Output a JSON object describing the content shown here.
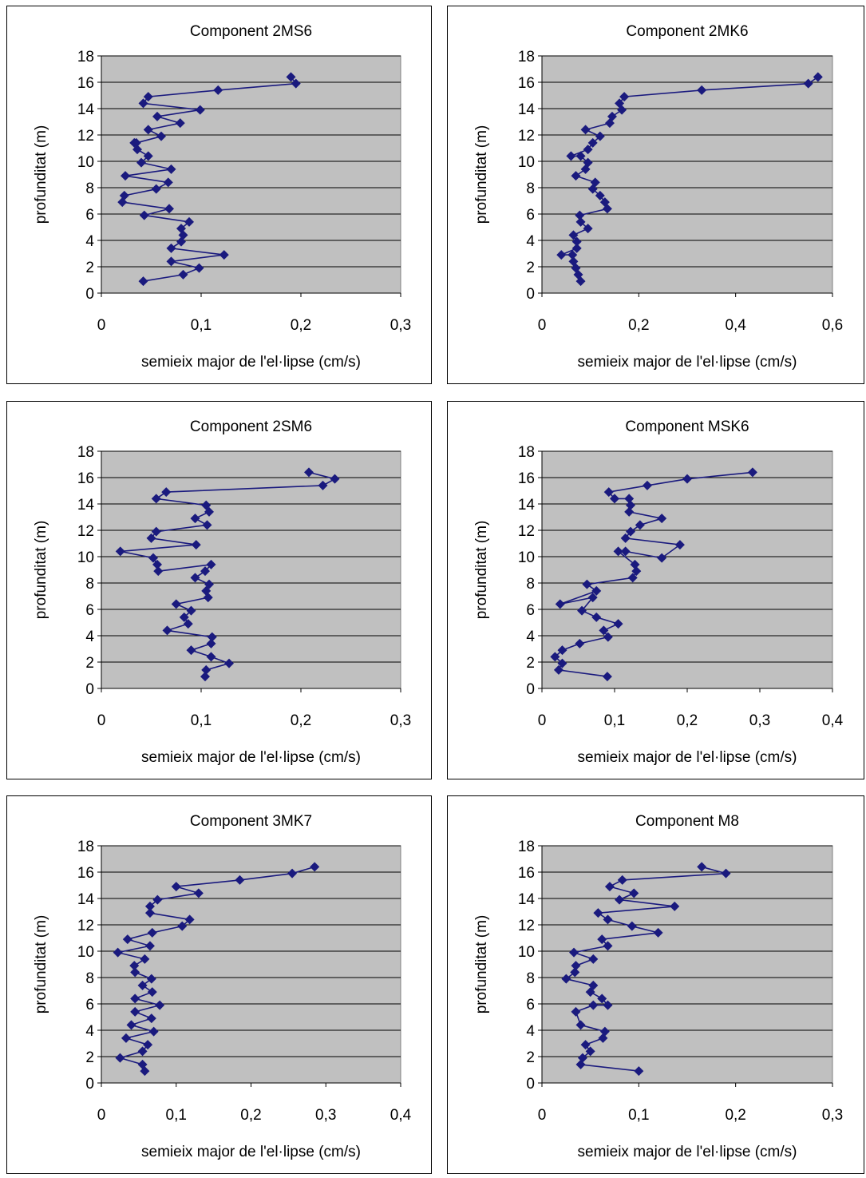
{
  "chart_data": [
    {
      "type": "scatter",
      "title": "Component 2MS6",
      "xlabel": "semieix major de l'el·lipse (cm/s)",
      "ylabel": "profunditat (m)",
      "xlim": [
        0,
        0.3
      ],
      "ylim": [
        0,
        18
      ],
      "xticks": [
        "0",
        "0,1",
        "0,2",
        "0,3"
      ],
      "yticks": [
        "0",
        "2",
        "4",
        "6",
        "8",
        "10",
        "12",
        "14",
        "16",
        "18"
      ],
      "series": [
        {
          "color": "#1a1a7e",
          "x": [
            0.042,
            0.082,
            0.098,
            0.07,
            0.123,
            0.07,
            0.08,
            0.082,
            0.08,
            0.088,
            0.043,
            0.068,
            0.021,
            0.023,
            0.055,
            0.067,
            0.024,
            0.07,
            0.04,
            0.047,
            0.036,
            0.033,
            0.035,
            0.06,
            0.047,
            0.079,
            0.056,
            0.099,
            0.042,
            0.047,
            0.117,
            0.195,
            0.19
          ],
          "y": [
            0.9,
            1.4,
            1.9,
            2.4,
            2.9,
            3.4,
            3.9,
            4.4,
            4.9,
            5.4,
            5.9,
            6.4,
            6.9,
            7.4,
            7.9,
            8.4,
            8.9,
            9.4,
            9.9,
            10.4,
            10.9,
            11.4,
            11.4,
            11.9,
            12.4,
            12.9,
            13.4,
            13.9,
            14.4,
            14.9,
            15.4,
            15.9,
            16.4
          ]
        }
      ]
    },
    {
      "type": "scatter",
      "title": "Component 2MK6",
      "xlabel": "semieix major de l'el·lipse (cm/s)",
      "ylabel": "profunditat (m)",
      "xlim": [
        0,
        0.6
      ],
      "ylim": [
        0,
        18
      ],
      "xticks": [
        "0",
        "0,2",
        "0,4",
        "0,6"
      ],
      "yticks": [
        "0",
        "2",
        "4",
        "6",
        "8",
        "10",
        "12",
        "14",
        "16",
        "18"
      ],
      "series": [
        {
          "color": "#1a1a7e",
          "x": [
            0.08,
            0.075,
            0.07,
            0.065,
            0.063,
            0.04,
            0.072,
            0.072,
            0.065,
            0.095,
            0.08,
            0.078,
            0.135,
            0.13,
            0.12,
            0.105,
            0.11,
            0.07,
            0.09,
            0.095,
            0.08,
            0.06,
            0.095,
            0.105,
            0.12,
            0.09,
            0.14,
            0.145,
            0.165,
            0.16,
            0.17,
            0.33,
            0.55,
            0.57
          ],
          "y": [
            0.9,
            1.4,
            1.9,
            2.4,
            2.9,
            2.9,
            3.4,
            3.9,
            4.4,
            4.9,
            5.4,
            5.9,
            6.4,
            6.9,
            7.4,
            7.9,
            8.4,
            8.9,
            9.4,
            9.9,
            10.4,
            10.4,
            10.9,
            11.4,
            11.9,
            12.4,
            12.9,
            13.4,
            13.9,
            14.4,
            14.9,
            15.4,
            15.9,
            16.4
          ]
        }
      ]
    },
    {
      "type": "scatter",
      "title": "Component 2SM6",
      "xlabel": "semieix major de l'el·lipse (cm/s)",
      "ylabel": "profunditat (m)",
      "xlim": [
        0,
        0.3
      ],
      "ylim": [
        0,
        18
      ],
      "xticks": [
        "0",
        "0,1",
        "0,2",
        "0,3"
      ],
      "yticks": [
        "0",
        "2",
        "4",
        "6",
        "8",
        "10",
        "12",
        "14",
        "16",
        "18"
      ],
      "series": [
        {
          "color": "#1a1a7e",
          "x": [
            0.104,
            0.105,
            0.128,
            0.11,
            0.09,
            0.11,
            0.111,
            0.066,
            0.087,
            0.083,
            0.09,
            0.075,
            0.107,
            0.105,
            0.108,
            0.094,
            0.104,
            0.11,
            0.057,
            0.056,
            0.052,
            0.019,
            0.095,
            0.05,
            0.055,
            0.106,
            0.094,
            0.108,
            0.105,
            0.055,
            0.065,
            0.222,
            0.234,
            0.208
          ],
          "y": [
            0.9,
            1.4,
            1.9,
            2.4,
            2.9,
            3.4,
            3.9,
            4.4,
            4.9,
            5.4,
            5.9,
            6.4,
            6.9,
            7.4,
            7.9,
            8.4,
            8.9,
            9.4,
            8.9,
            9.4,
            9.9,
            10.4,
            10.9,
            11.4,
            11.9,
            12.4,
            12.9,
            13.4,
            13.9,
            14.4,
            14.9,
            15.4,
            15.9,
            16.4
          ]
        }
      ]
    },
    {
      "type": "scatter",
      "title": "Component MSK6",
      "xlabel": "semieix major de l'el·lipse (cm/s)",
      "ylabel": "profunditat (m)",
      "xlim": [
        0,
        0.4
      ],
      "ylim": [
        0,
        18
      ],
      "xticks": [
        "0",
        "0,1",
        "0,2",
        "0,3",
        "0,4"
      ],
      "yticks": [
        "0",
        "2",
        "4",
        "6",
        "8",
        "10",
        "12",
        "14",
        "16",
        "18"
      ],
      "series": [
        {
          "color": "#1a1a7e",
          "x": [
            0.09,
            0.023,
            0.028,
            0.018,
            0.028,
            0.052,
            0.091,
            0.085,
            0.105,
            0.075,
            0.055,
            0.07,
            0.025,
            0.075,
            0.062,
            0.125,
            0.13,
            0.128,
            0.105,
            0.115,
            0.165,
            0.19,
            0.115,
            0.122,
            0.135,
            0.165,
            0.12,
            0.122,
            0.12,
            0.1,
            0.092,
            0.145,
            0.2,
            0.29
          ],
          "y": [
            0.9,
            1.4,
            1.9,
            2.4,
            2.9,
            3.4,
            3.9,
            4.4,
            4.9,
            5.4,
            5.9,
            6.9,
            6.4,
            7.4,
            7.9,
            8.4,
            8.9,
            9.4,
            10.4,
            10.4,
            9.9,
            10.9,
            11.4,
            11.9,
            12.4,
            12.9,
            13.4,
            13.9,
            14.4,
            14.4,
            14.9,
            15.4,
            15.9,
            16.4
          ]
        }
      ]
    },
    {
      "type": "scatter",
      "title": "Component 3MK7",
      "xlabel": "semieix major de l'el·lipse (cm/s)",
      "ylabel": "profunditat (m)",
      "xlim": [
        0,
        0.4
      ],
      "ylim": [
        0,
        18
      ],
      "xticks": [
        "0",
        "0,1",
        "0,2",
        "0,3",
        "0,4"
      ],
      "yticks": [
        "0",
        "2",
        "4",
        "6",
        "8",
        "10",
        "12",
        "14",
        "16",
        "18"
      ],
      "series": [
        {
          "color": "#1a1a7e",
          "x": [
            0.058,
            0.055,
            0.025,
            0.055,
            0.062,
            0.033,
            0.07,
            0.04,
            0.067,
            0.045,
            0.078,
            0.045,
            0.068,
            0.055,
            0.067,
            0.045,
            0.044,
            0.058,
            0.022,
            0.065,
            0.035,
            0.068,
            0.108,
            0.118,
            0.065,
            0.065,
            0.075,
            0.13,
            0.1,
            0.185,
            0.255,
            0.285
          ],
          "y": [
            0.9,
            1.4,
            1.9,
            2.4,
            2.9,
            3.4,
            3.9,
            4.4,
            4.9,
            5.4,
            5.9,
            6.4,
            6.9,
            7.4,
            7.9,
            8.4,
            8.9,
            9.4,
            9.9,
            10.4,
            10.9,
            11.4,
            11.9,
            12.4,
            12.9,
            13.4,
            13.9,
            14.4,
            14.9,
            15.4,
            15.9,
            16.4
          ]
        }
      ]
    },
    {
      "type": "scatter",
      "title": "Component M8",
      "xlabel": "semieix major de l'el·lipse (cm/s)",
      "ylabel": "profunditat (m)",
      "xlim": [
        0,
        0.3
      ],
      "ylim": [
        0,
        18
      ],
      "xticks": [
        "0",
        "0,1",
        "0,2",
        "0,3"
      ],
      "yticks": [
        "0",
        "2",
        "4",
        "6",
        "8",
        "10",
        "12",
        "14",
        "16",
        "18"
      ],
      "series": [
        {
          "color": "#1a1a7e",
          "x": [
            0.1,
            0.04,
            0.042,
            0.05,
            0.045,
            0.063,
            0.065,
            0.04,
            0.035,
            0.053,
            0.068,
            0.062,
            0.05,
            0.053,
            0.025,
            0.034,
            0.035,
            0.053,
            0.033,
            0.068,
            0.062,
            0.12,
            0.093,
            0.068,
            0.058,
            0.137,
            0.08,
            0.095,
            0.07,
            0.083,
            0.19,
            0.165
          ],
          "y": [
            0.9,
            1.4,
            1.9,
            2.4,
            2.9,
            3.4,
            3.9,
            4.4,
            5.4,
            5.9,
            5.9,
            6.4,
            6.9,
            7.4,
            7.9,
            8.4,
            8.9,
            9.4,
            9.9,
            10.4,
            10.9,
            11.4,
            11.9,
            12.4,
            12.9,
            13.4,
            13.9,
            14.4,
            14.9,
            15.4,
            15.9,
            16.4
          ]
        }
      ]
    }
  ]
}
